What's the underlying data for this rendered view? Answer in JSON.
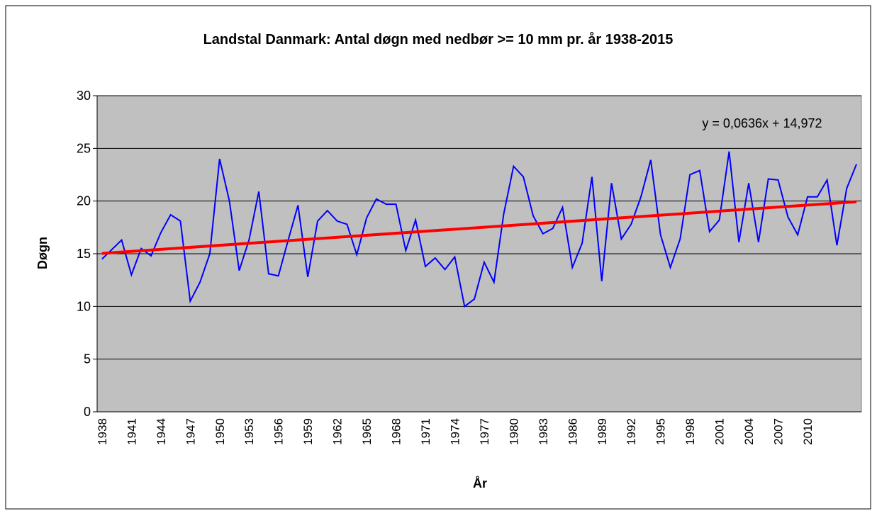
{
  "chart_data": {
    "type": "line",
    "title": "Landstal Danmark: Antal  døgn med nedbør >= 10 mm pr. år 1938-2015",
    "x_label": "År",
    "y_label": "Døgn",
    "annotation": "y = 0,0636x + 14,972",
    "categories": [
      "1938",
      null,
      null,
      "1941",
      null,
      null,
      "1944",
      null,
      null,
      "1947",
      null,
      null,
      "1950",
      null,
      null,
      "1953",
      null,
      null,
      "1956",
      null,
      null,
      "1959",
      null,
      null,
      "1962",
      null,
      null,
      "1965",
      null,
      null,
      "1968",
      null,
      null,
      "1971",
      null,
      null,
      "1974",
      null,
      null,
      "1977",
      null,
      null,
      "1980",
      null,
      null,
      "1983",
      null,
      null,
      "1986",
      null,
      null,
      "1989",
      null,
      null,
      "1992",
      null,
      null,
      "1995",
      null,
      null,
      "1998",
      null,
      null,
      "2001",
      null,
      null,
      "2004",
      null,
      null,
      "2007",
      null,
      null,
      "2010",
      null,
      null,
      null,
      null,
      null
    ],
    "series": [
      {
        "name": "Døgn",
        "color": "#0000ff",
        "values": [
          14.5,
          15.4,
          16.3,
          13.0,
          15.5,
          14.8,
          17.0,
          18.7,
          18.1,
          10.5,
          12.3,
          15.0,
          24.0,
          20.0,
          13.4,
          16.3,
          20.9,
          13.1,
          12.9,
          16.3,
          19.6,
          12.8,
          18.1,
          19.1,
          18.1,
          17.8,
          14.9,
          18.4,
          20.2,
          19.7,
          19.7,
          15.3,
          18.2,
          13.8,
          14.6,
          13.5,
          14.7,
          10.0,
          10.7,
          14.2,
          12.3,
          18.8,
          23.3,
          22.3,
          18.6,
          16.9,
          17.4,
          19.4,
          13.7,
          16.0,
          22.3,
          12.4,
          21.7,
          16.4,
          17.8,
          20.4,
          23.9,
          16.8,
          13.7,
          16.4,
          22.5,
          22.9,
          17.1,
          18.2,
          24.7,
          16.1,
          21.7,
          16.1,
          22.1,
          22.0,
          18.5,
          16.8,
          20.4,
          20.4,
          22.0,
          15.8,
          21.2,
          23.5
        ]
      }
    ],
    "trendline": {
      "slope": 0.0636,
      "intercept": 14.972,
      "color": "#ff0000"
    },
    "ylim": [
      0,
      30
    ],
    "yticks": [
      0,
      5,
      10,
      15,
      20,
      25,
      30
    ],
    "grid": true,
    "plot_background": "#c0c0c0"
  }
}
